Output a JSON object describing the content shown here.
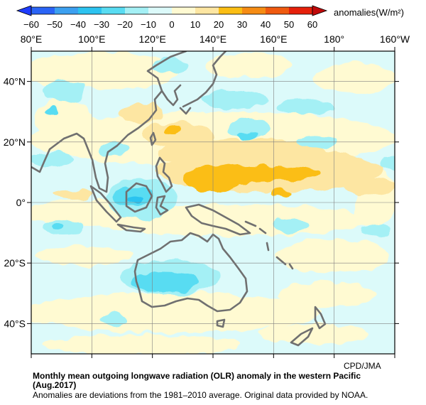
{
  "legend": {
    "unit_label": "anomalies(W/m²)",
    "ticks": [
      "−60",
      "−50",
      "−40",
      "−30",
      "−20",
      "−10",
      "0",
      "10",
      "20",
      "30",
      "40",
      "50",
      "60"
    ],
    "bins": [
      {
        "range": "< -60",
        "color": "#1e3cff"
      },
      {
        "range": "-60 to -50",
        "color": "#2a64f6"
      },
      {
        "range": "-50 to -40",
        "color": "#3ca0f0"
      },
      {
        "range": "-40 to -30",
        "color": "#2cc3f0"
      },
      {
        "range": "-30 to -20",
        "color": "#58dcf2"
      },
      {
        "range": "-20 to -10",
        "color": "#a4f0f5"
      },
      {
        "range": "-10 to 0",
        "color": "#dcfafa"
      },
      {
        "range": "0 to 10",
        "color": "#fffad2"
      },
      {
        "range": "10 to 20",
        "color": "#fde6a2"
      },
      {
        "range": "20 to 30",
        "color": "#fbbe14"
      },
      {
        "range": "30 to 40",
        "color": "#f68c14"
      },
      {
        "range": "40 to 50",
        "color": "#f05a0f"
      },
      {
        "range": "50 to 60",
        "color": "#e6200a"
      },
      {
        "range": "> 60",
        "color": "#c00a0a"
      }
    ]
  },
  "map": {
    "lon_labels": [
      "80°E",
      "100°E",
      "120°E",
      "140°E",
      "160°E",
      "180°",
      "160°W"
    ],
    "lat_labels": [
      "40°N",
      "20°N",
      "0°",
      "20°S",
      "40°S"
    ],
    "coastline_color": "#707070"
  },
  "credit": "CPD/JMA",
  "caption": {
    "title": "Monthly mean outgoing longwave radiation (OLR) anomaly in the western Pacific",
    "period": "(Aug.2017)",
    "note": "Anomalies are deviations from the 1981–2010 average. Original data provided by NOAA."
  }
}
